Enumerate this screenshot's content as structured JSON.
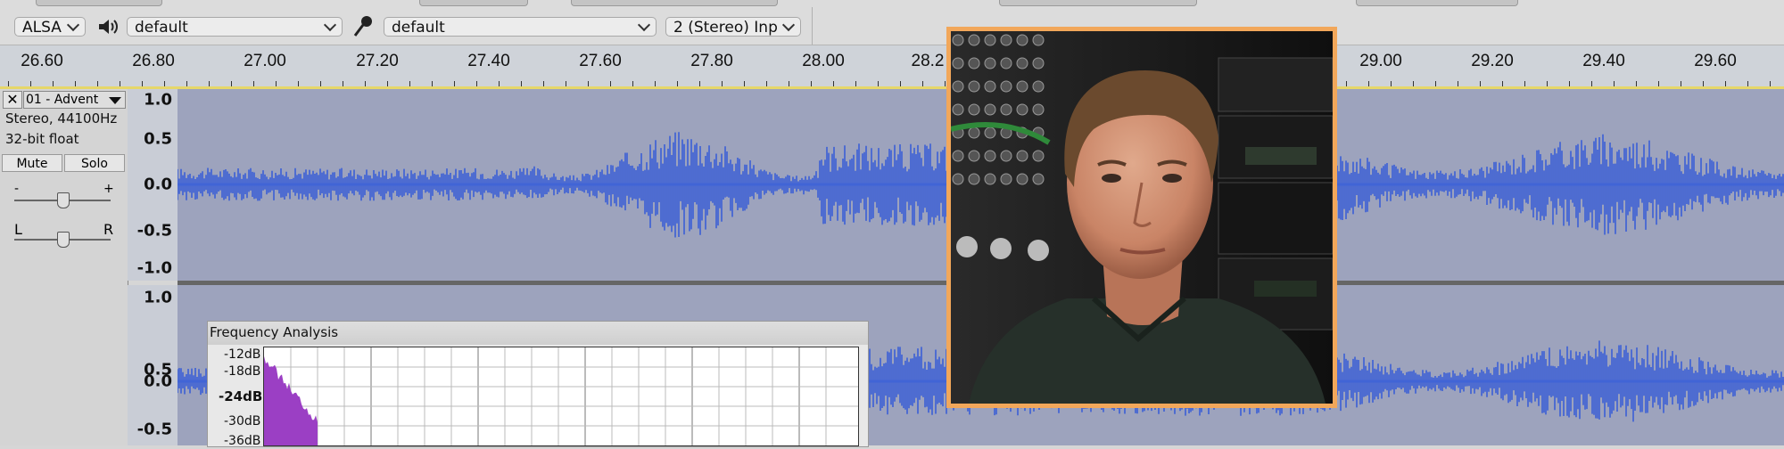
{
  "toolbar": {
    "host_select": "ALSA",
    "output_device": "default",
    "input_device": "default",
    "input_channels": "2 (Stereo) Inp"
  },
  "ruler": {
    "labels": [
      "26.60",
      "26.80",
      "27.00",
      "27.20",
      "27.40",
      "27.60",
      "27.80",
      "28.00",
      "28.2",
      "29.00",
      "29.20",
      "29.40",
      "29.60"
    ]
  },
  "track": {
    "name": "01 - Advent",
    "format": "Stereo, 44100Hz",
    "bit_depth": "32-bit float",
    "mute_label": "Mute",
    "solo_label": "Solo",
    "gain_minus": "-",
    "gain_plus": "+",
    "pan_left": "L",
    "pan_right": "R",
    "scale_top": [
      "1.0",
      "0.5",
      "0.0",
      "-0.5",
      "-1.0"
    ],
    "scale_bottom": [
      "1.0",
      "0.5",
      "0.0",
      "-0.5"
    ]
  },
  "frequency_analysis": {
    "title": "Frequency Analysis",
    "db_labels": [
      "-12dB",
      "-18dB",
      "-24dB",
      "-30dB",
      "-36dB"
    ]
  },
  "colors": {
    "waveform": "#3a5fd6",
    "wave_background": "#9da3bd",
    "spectrum": "#9b3fc4",
    "photo_border": "#f2a75a",
    "ruler_highlight": "#e6d76a"
  }
}
